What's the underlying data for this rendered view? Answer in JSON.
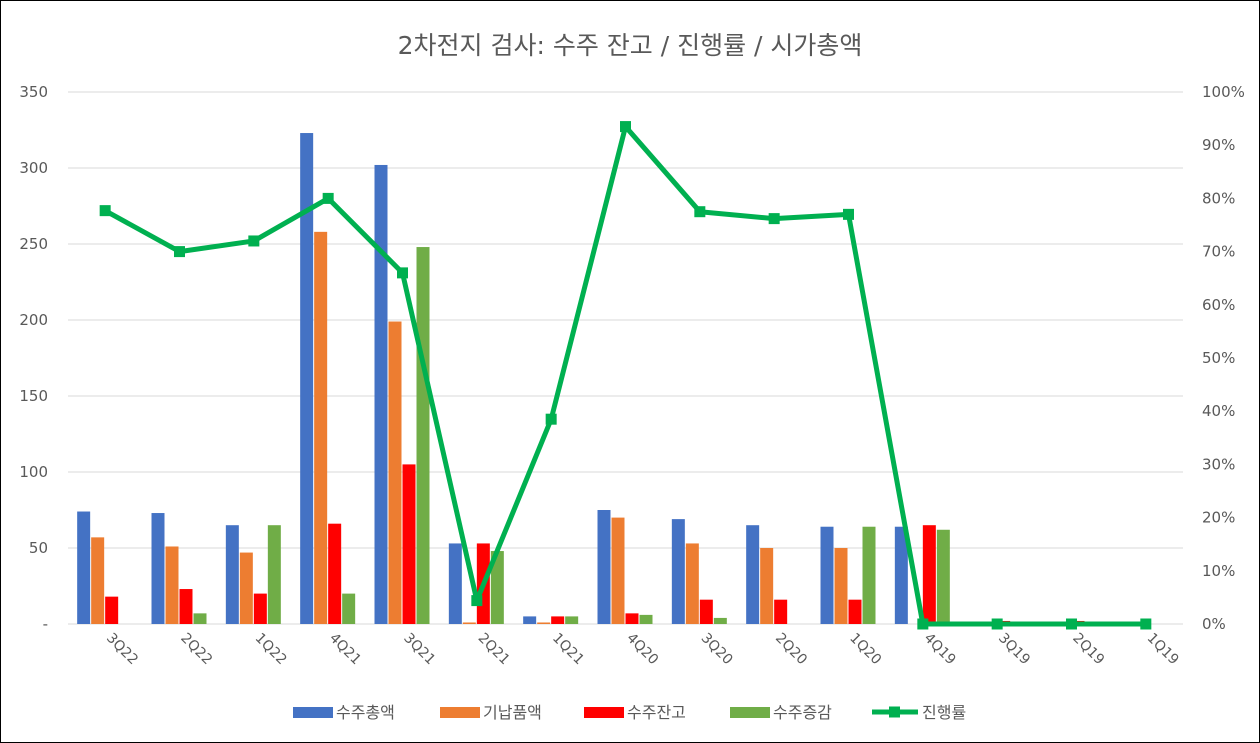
{
  "chart_data": {
    "type": "bar",
    "title": "2차전지 검사: 수주 잔고 / 진행률 / 시가총액",
    "categories": [
      "3Q22",
      "2Q22",
      "1Q22",
      "4Q21",
      "3Q21",
      "2Q21",
      "1Q21",
      "4Q20",
      "3Q20",
      "2Q20",
      "1Q20",
      "4Q19",
      "3Q19",
      "2Q19",
      "1Q19"
    ],
    "ylim": [
      0,
      350
    ],
    "yticks": [
      0,
      50,
      100,
      150,
      200,
      250,
      300,
      350
    ],
    "y_tick_labels": [
      "-",
      "50",
      "100",
      "150",
      "200",
      "250",
      "300",
      "350"
    ],
    "y2lim": [
      0,
      1
    ],
    "y2ticks": [
      0,
      0.1,
      0.2,
      0.3,
      0.4,
      0.5,
      0.6,
      0.7,
      0.8,
      0.9,
      1.0
    ],
    "y2_tick_labels": [
      "0%",
      "10%",
      "20%",
      "30%",
      "40%",
      "50%",
      "60%",
      "70%",
      "80%",
      "90%",
      "100%"
    ],
    "grid": true,
    "legend_position": "bottom",
    "series": [
      {
        "name": "수주총액",
        "type": "bar",
        "color": "#4472C4",
        "values": [
          74,
          73,
          65,
          323,
          302,
          53,
          5,
          75,
          69,
          65,
          64,
          64,
          0,
          0,
          0
        ]
      },
      {
        "name": "기납품액",
        "type": "bar",
        "color": "#ED7D31",
        "values": [
          57,
          51,
          47,
          258,
          199,
          1,
          1,
          70,
          53,
          50,
          50,
          0,
          0,
          0,
          0
        ]
      },
      {
        "name": "수주잔고",
        "type": "bar",
        "color": "#FF0000",
        "values": [
          18,
          23,
          20,
          66,
          105,
          53,
          5,
          7,
          16,
          16,
          16,
          65,
          2,
          2,
          0
        ]
      },
      {
        "name": "수주증감",
        "type": "bar",
        "color": "#70AD47",
        "values": [
          0,
          7,
          65,
          20,
          248,
          48,
          5,
          6,
          4,
          0,
          64,
          62,
          0,
          0,
          0
        ]
      },
      {
        "name": "진행률",
        "type": "line",
        "axis": "right",
        "color": "#00B050",
        "values": [
          0.777,
          0.7,
          0.72,
          0.8,
          0.66,
          0.044,
          0.385,
          0.935,
          0.775,
          0.762,
          0.77,
          0.0,
          0.0,
          0.0,
          0.0
        ]
      }
    ]
  }
}
